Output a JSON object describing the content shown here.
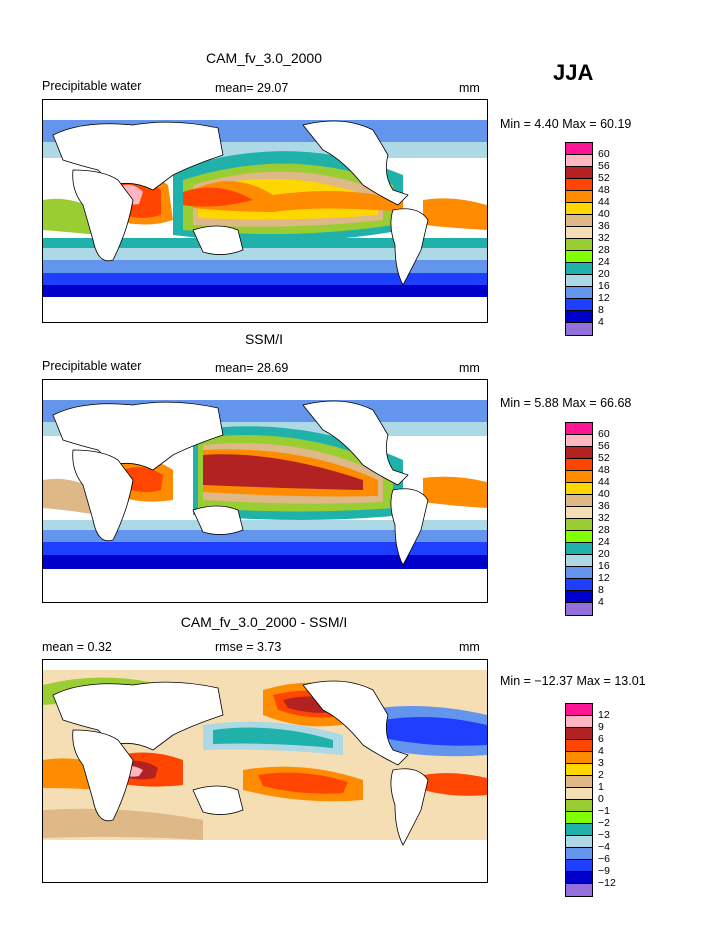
{
  "season": "JJA",
  "panels": [
    {
      "title": "CAM_fv_3.0_2000",
      "left_label": "Precipitable water",
      "middle_label": "mean=  29.07",
      "unit": "mm",
      "min_label": "Min =   4.40",
      "max_label": "Max =  60.19"
    },
    {
      "title": "SSM/I",
      "left_label": "Precipitable water",
      "middle_label": "mean=  28.69",
      "unit": "mm",
      "min_label": "Min =   5.88",
      "max_label": "Max =  66.68"
    },
    {
      "title": "CAM_fv_3.0_2000 - SSM/I",
      "left_label": "mean =    0.32",
      "middle_label": "rmse =    3.73",
      "unit": "mm",
      "min_label": "Min = −12.37",
      "max_label": "Max =  13.01"
    }
  ],
  "legend_abs": {
    "levels": [
      "60",
      "56",
      "52",
      "48",
      "44",
      "40",
      "36",
      "32",
      "28",
      "24",
      "20",
      "16",
      "12",
      "8",
      "4"
    ],
    "colors": [
      "#ff1493",
      "#ffb6c1",
      "#b22222",
      "#ff4500",
      "#ff8c00",
      "#ffd700",
      "#deb887",
      "#f5deb3",
      "#9acd32",
      "#7fff00",
      "#20b2aa",
      "#add8e6",
      "#6495ed",
      "#1e3fff",
      "#0000cd",
      "#9370db"
    ]
  },
  "legend_diff": {
    "levels": [
      "12",
      "9",
      "6",
      "4",
      "3",
      "2",
      "1",
      "0",
      "−1",
      "−2",
      "−3",
      "−4",
      "−6",
      "−9",
      "−12"
    ],
    "colors": [
      "#ff1493",
      "#ffb6c1",
      "#b22222",
      "#ff4500",
      "#ff8c00",
      "#ffd700",
      "#deb887",
      "#f5deb3",
      "#9acd32",
      "#7fff00",
      "#20b2aa",
      "#add8e6",
      "#6495ed",
      "#1e3fff",
      "#0000cd",
      "#9370db"
    ]
  }
}
